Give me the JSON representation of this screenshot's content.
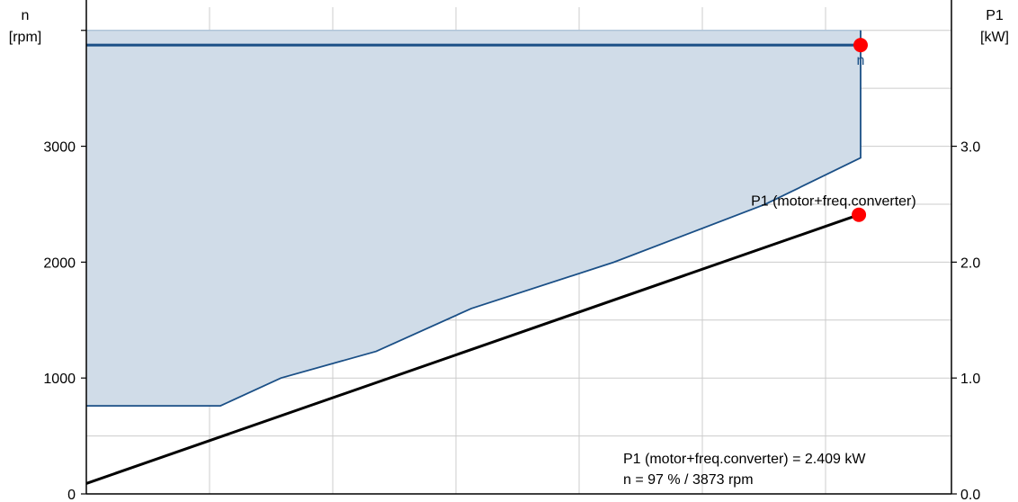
{
  "chart_data": {
    "type": "line",
    "title": "",
    "left_axis": {
      "label_line1": "n",
      "label_line2": "[rpm]",
      "ylim": [
        0,
        4200
      ],
      "ticks": [
        0,
        1000,
        2000,
        3000
      ],
      "tick_labels": [
        "0",
        "1000",
        "2000",
        "3000"
      ]
    },
    "right_axis": {
      "label_line1": "P1",
      "label_line2": "[kW]",
      "ylim": [
        0,
        4.2
      ],
      "ticks": [
        0,
        1,
        2,
        3
      ],
      "tick_labels": [
        "0.0",
        "1.0",
        "2.0",
        "3.0"
      ]
    },
    "x_range": [
      0,
      1
    ],
    "grid": true,
    "operating_range": {
      "upper_speed": 4000,
      "min_speed": 760,
      "boundary": [
        [
          0,
          760
        ],
        [
          0.155,
          760
        ],
        [
          0.225,
          1000
        ],
        [
          0.335,
          1230
        ],
        [
          0.445,
          1600
        ],
        [
          0.61,
          2000
        ],
        [
          0.785,
          2500
        ],
        [
          0.895,
          2900
        ],
        [
          0.895,
          4000
        ]
      ]
    },
    "series": [
      {
        "name": "n",
        "axis": "left",
        "points": [
          [
            0,
            3873
          ],
          [
            0.895,
            3873
          ]
        ],
        "marker": {
          "x": 0.895,
          "y": 3873,
          "label": "n"
        }
      },
      {
        "name": "P1 (motor+freq.converter)",
        "axis": "right",
        "points": [
          [
            0,
            0.09
          ],
          [
            0.893,
            2.409
          ]
        ],
        "marker": {
          "x": 0.893,
          "y": 2.409,
          "label": "P1 (motor+freq.converter)"
        }
      }
    ],
    "annotations": [
      "P1 (motor+freq.converter) = 2.409 kW",
      "n = 97 % / 3873 rpm"
    ],
    "colors": {
      "range_fill": "#d0dce8",
      "range_stroke": "#1a4f86",
      "n_line": "#1a4f86",
      "p1_line": "#000000",
      "marker": "#ff0000"
    }
  }
}
